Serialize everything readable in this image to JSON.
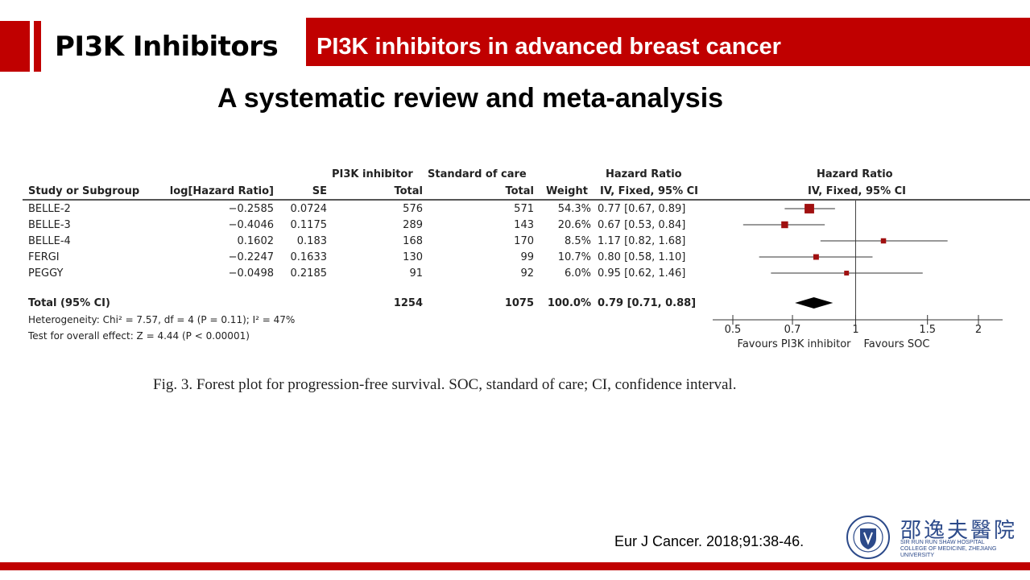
{
  "slide": {
    "title": "PI3K Inhibitors",
    "banner": "PI3K inhibitors in advanced breast cancer",
    "subtitle": "A systematic review and meta-analysis",
    "caption": "Fig. 3. Forest plot for progression-free survival. SOC, standard of care; CI, confidence interval.",
    "citation": "Eur J Cancer. 2018;91:38-46.",
    "logo_cn": "邵逸夫醫院",
    "logo_en": "SIR RUN RUN SHAW HOSPITAL COLLEGE OF MEDICINE, ZHEJIANG UNIVERSITY",
    "accent_color": "#c00000"
  },
  "table": {
    "header_top": {
      "pi3k": "PI3K inhibitor",
      "soc": "Standard of care",
      "hr": "Hazard Ratio",
      "hr_plot": "Hazard Ratio"
    },
    "header": {
      "study": "Study or Subgroup",
      "loghr": "log[Hazard Ratio]",
      "se": "SE",
      "pi3k_total": "Total",
      "soc_total": "Total",
      "weight": "Weight",
      "hr": "IV, Fixed, 95% CI",
      "hr_plot": "IV, Fixed, 95% CI"
    },
    "rows": [
      {
        "study": "BELLE-2",
        "loghr": "−0.2585",
        "se": "0.0724",
        "pi3k": "576",
        "soc": "571",
        "weight": "54.3%",
        "ci": "0.77 [0.67, 0.89]"
      },
      {
        "study": "BELLE-3",
        "loghr": "−0.4046",
        "se": "0.1175",
        "pi3k": "289",
        "soc": "143",
        "weight": "20.6%",
        "ci": "0.67 [0.53, 0.84]"
      },
      {
        "study": "BELLE-4",
        "loghr": "0.1602",
        "se": "0.183",
        "pi3k": "168",
        "soc": "170",
        "weight": "8.5%",
        "ci": "1.17 [0.82, 1.68]"
      },
      {
        "study": "FERGI",
        "loghr": "−0.2247",
        "se": "0.1633",
        "pi3k": "130",
        "soc": "99",
        "weight": "10.7%",
        "ci": "0.80 [0.58, 1.10]"
      },
      {
        "study": "PEGGY",
        "loghr": "−0.0498",
        "se": "0.2185",
        "pi3k": "91",
        "soc": "92",
        "weight": "6.0%",
        "ci": "0.95 [0.62, 1.46]"
      }
    ],
    "total": {
      "study": "Total (95% CI)",
      "pi3k": "1254",
      "soc": "1075",
      "weight": "100.0%",
      "ci": "0.79 [0.71, 0.88]"
    },
    "heterogeneity": "Heterogeneity: Chi² = 7.57, df = 4 (P = 0.11); I² = 47%",
    "overall_effect": "Test for overall effect: Z = 4.44 (P < 0.00001)"
  },
  "chart_data": {
    "type": "scatter",
    "title": "Hazard Ratio",
    "xlabel": "",
    "scale": "log",
    "xlim": [
      0.5,
      2
    ],
    "ticks": [
      {
        "value": 0.5,
        "label": "0.5"
      },
      {
        "value": 0.7,
        "label": "0.7"
      },
      {
        "value": 1,
        "label": "1"
      },
      {
        "value": 1.5,
        "label": "1.5"
      },
      {
        "value": 2,
        "label": "2"
      }
    ],
    "favours_left": "Favours PI3K inhibitor",
    "favours_right": "Favours SOC",
    "studies": [
      {
        "hr": 0.77,
        "lo": 0.67,
        "hi": 0.89,
        "weight": 54.3
      },
      {
        "hr": 0.67,
        "lo": 0.53,
        "hi": 0.84,
        "weight": 20.6
      },
      {
        "hr": 1.17,
        "lo": 0.82,
        "hi": 1.68,
        "weight": 8.5
      },
      {
        "hr": 0.8,
        "lo": 0.58,
        "hi": 1.1,
        "weight": 10.7
      },
      {
        "hr": 0.95,
        "lo": 0.62,
        "hi": 1.46,
        "weight": 6.0
      }
    ],
    "pooled": {
      "hr": 0.79,
      "lo": 0.71,
      "hi": 0.88
    },
    "marker_color": "#a01010"
  }
}
